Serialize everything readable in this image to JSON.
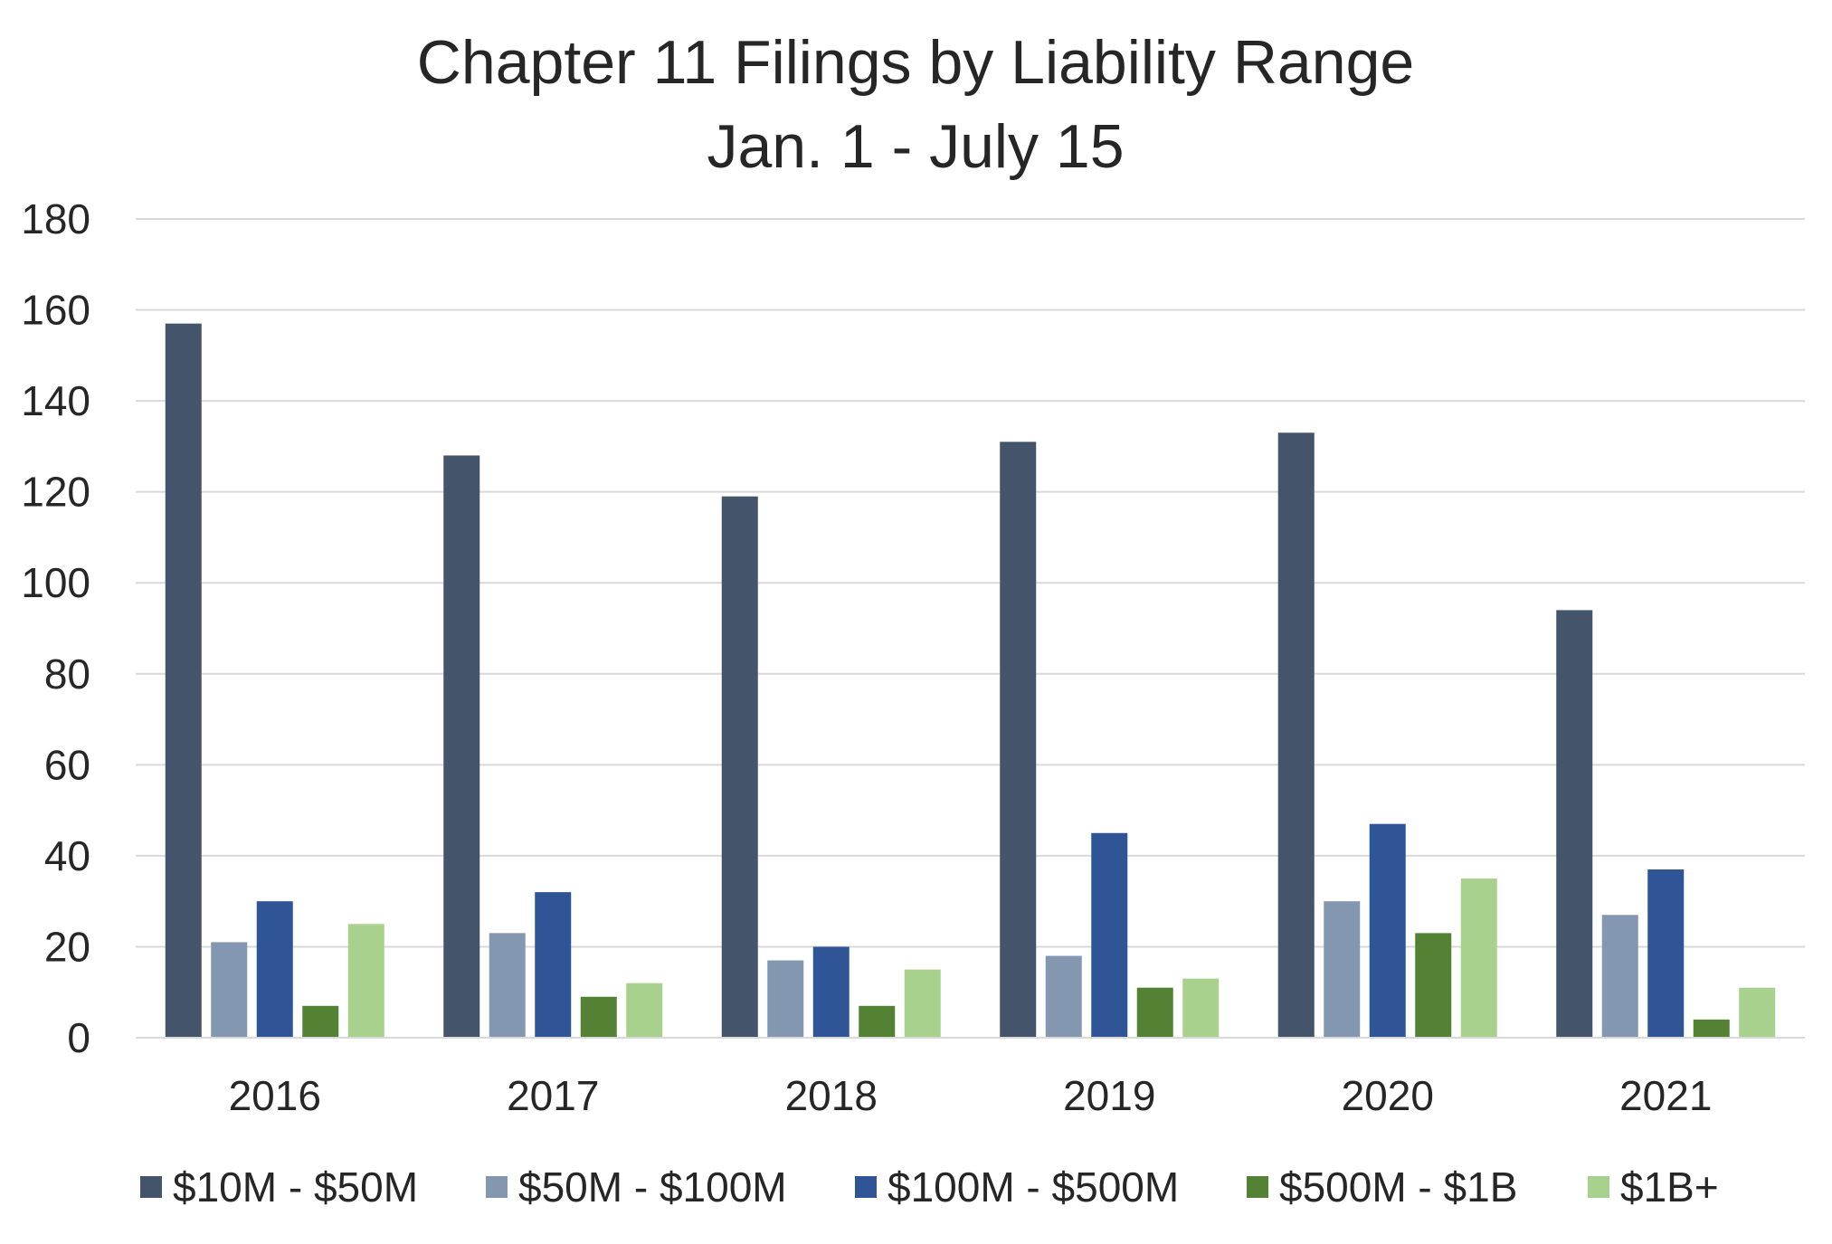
{
  "chart_data": {
    "type": "bar",
    "title": "Chapter 11 Filings by Liability Range",
    "subtitle": "Jan. 1 - July 15",
    "xlabel": "",
    "ylabel": "",
    "categories": [
      "2016",
      "2017",
      "2018",
      "2019",
      "2020",
      "2021"
    ],
    "ylim": [
      0,
      180
    ],
    "yticks": [
      0,
      20,
      40,
      60,
      80,
      100,
      120,
      140,
      160,
      180
    ],
    "grid": true,
    "legend_position": "bottom",
    "series": [
      {
        "name": "$10M - $50M",
        "color": "#44546a",
        "values": [
          157,
          128,
          119,
          131,
          133,
          94
        ]
      },
      {
        "name": "$50M - $100M",
        "color": "#8497b0",
        "values": [
          21,
          23,
          17,
          18,
          30,
          27
        ]
      },
      {
        "name": "$100M - $500M",
        "color": "#2f5597",
        "values": [
          30,
          32,
          20,
          45,
          47,
          37
        ]
      },
      {
        "name": "$500M - $1B",
        "color": "#548235",
        "values": [
          7,
          9,
          7,
          11,
          23,
          4
        ]
      },
      {
        "name": "$1B+",
        "color": "#a9d18e",
        "values": [
          25,
          12,
          15,
          13,
          35,
          11
        ]
      }
    ]
  }
}
